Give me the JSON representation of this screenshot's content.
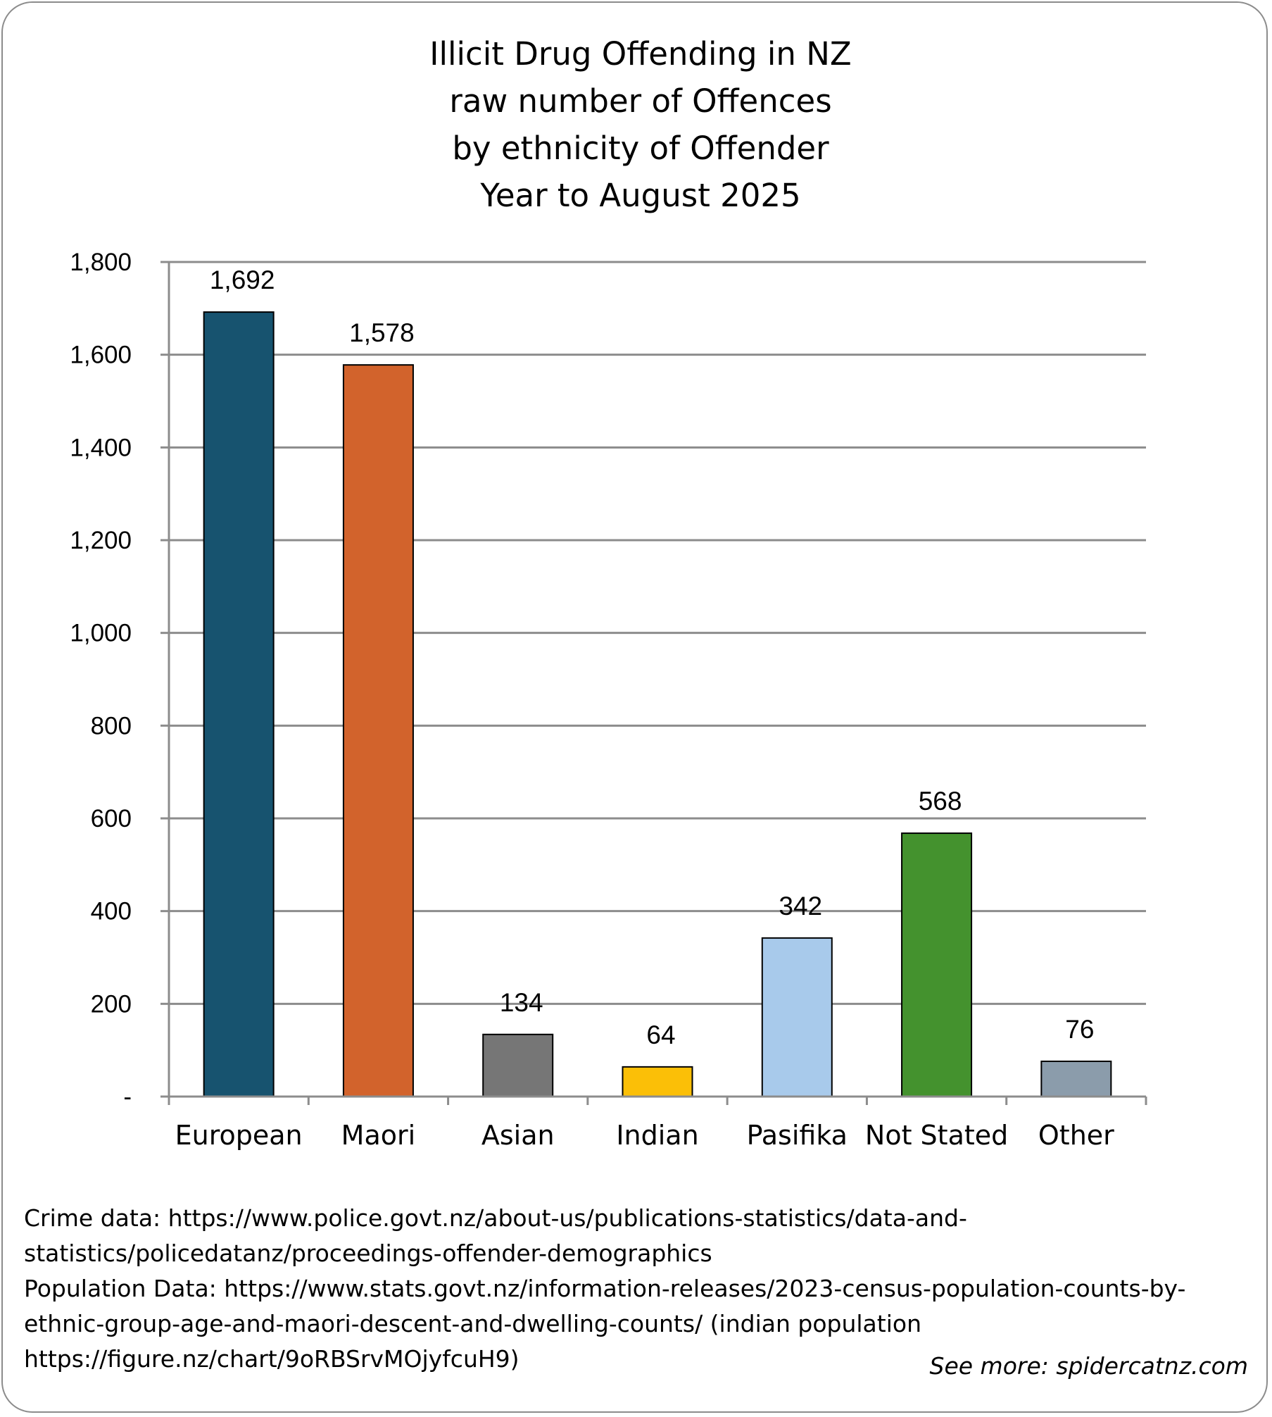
{
  "chart_data": {
    "type": "bar",
    "title_lines": [
      "Illicit Drug Offending in NZ",
      "raw number of Offences",
      "by ethnicity of Offender",
      "Year to August 2025"
    ],
    "categories": [
      "European",
      "Maori",
      "Asian",
      "Indian",
      "Pasifika",
      "Not Stated",
      "Other"
    ],
    "values": [
      1692,
      1578,
      134,
      64,
      342,
      568,
      76
    ],
    "data_labels": [
      "1,692",
      "1,578",
      "134",
      "64",
      "342",
      "568",
      "76"
    ],
    "bar_colors": [
      "#17536f",
      "#d2632c",
      "#767676",
      "#fbbf07",
      "#a8caeb",
      "#44922e",
      "#8b9cab"
    ],
    "ylim": [
      0,
      1800
    ],
    "y_ticks": [
      0,
      200,
      400,
      600,
      800,
      1000,
      1200,
      1400,
      1600,
      1800
    ],
    "y_tick_labels": [
      "-",
      "200",
      "400",
      "600",
      "800",
      "1,000",
      "1,200",
      "1,400",
      "1,600",
      "1,800"
    ],
    "xlabel": "",
    "ylabel": "",
    "grid": true,
    "legend": "none"
  },
  "notes": {
    "lines": [
      "Crime data: https://www.police.govt.nz/about-us/publications-statistics/data-and-",
      "statistics/policedatanz/proceedings-offender-demographics",
      "Population Data: https://www.stats.govt.nz/information-releases/2023-census-population-counts-by-",
      "ethnic-group-age-and-maori-descent-and-dwelling-counts/  (indian population",
      "https://figure.nz/chart/9oRBSrvMOjyfcuH9)"
    ],
    "see_more": "See more: spidercatnz.com"
  },
  "colors": {
    "gridline": "#8c8c8c",
    "bar_outline": "#000000",
    "frame": "#8c8c8c"
  }
}
